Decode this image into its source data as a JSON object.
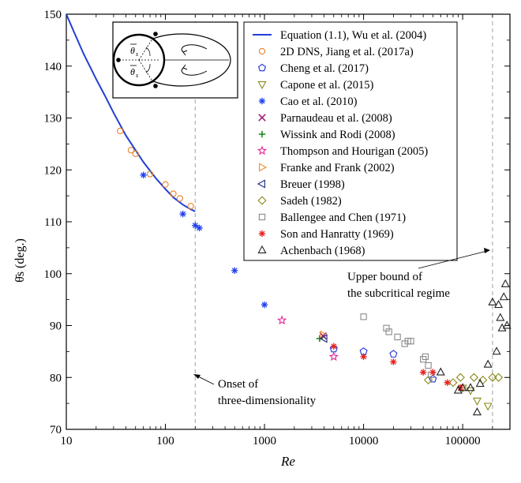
{
  "chart_data": {
    "type": "scatter",
    "title": "",
    "xlabel": "Re",
    "ylabel": "θ̄s (deg.)",
    "xscale": "log",
    "xlim": [
      10,
      300000
    ],
    "ylim": [
      70,
      150
    ],
    "xticks": [
      10,
      100,
      1000,
      10000,
      100000
    ],
    "xtick_labels": [
      "10",
      "100",
      "1000",
      "10000",
      "100000"
    ],
    "yticks": [
      70,
      80,
      90,
      100,
      110,
      120,
      130,
      140,
      150
    ],
    "ytick_labels": [
      "70",
      "80",
      "90",
      "100",
      "110",
      "120",
      "130",
      "140",
      "150"
    ],
    "reference_lines": [
      {
        "x": 200,
        "style": "dashed",
        "annotation": {
          "line1": "Onset of",
          "line2": "three-dimensionality"
        }
      },
      {
        "x": 200000,
        "style": "dashed",
        "annotation": {
          "line1": "Upper bound of",
          "line2": "the subcritical regime"
        }
      }
    ],
    "legend_position": "top-right",
    "inset": "separation angle schematic",
    "series": [
      {
        "name": "Equation (1.1), Wu et al. (2004)",
        "marker": "line",
        "color": "#1f3fd6",
        "x": [
          10,
          12,
          15,
          20,
          25,
          30,
          40,
          50,
          60,
          80,
          100,
          120,
          150,
          180,
          200
        ],
        "y": [
          150,
          146.5,
          142.3,
          137.5,
          134.0,
          131.0,
          126.6,
          123.8,
          121.5,
          118.4,
          116.3,
          114.7,
          113.3,
          112.4,
          112.0
        ]
      },
      {
        "name": "2D DNS, Jiang et al. (2017a)",
        "marker": "circle",
        "color": "#e8822a",
        "x": [
          35,
          45,
          50,
          70,
          100,
          120,
          140,
          180
        ],
        "y": [
          127.5,
          123.8,
          123.1,
          119.2,
          117.2,
          115.4,
          114.5,
          113.0
        ]
      },
      {
        "name": "Cheng et al. (2017)",
        "marker": "pentagon",
        "color": "#1f2fd8",
        "x": [
          5000,
          10000,
          20000,
          50000
        ],
        "y": [
          85.5,
          85.0,
          84.5,
          79.7
        ]
      },
      {
        "name": "Capone et al. (2015)",
        "marker": "triangle-down",
        "color": "#8b8a1a",
        "x": [
          100000,
          120000,
          140000,
          180000
        ],
        "y": [
          78,
          77.5,
          75.5,
          74.5
        ]
      },
      {
        "name": "Cao et al. (2010)",
        "marker": "asterisk",
        "color": "#1f3ff0",
        "x": [
          60,
          150,
          200,
          220,
          500,
          1000
        ],
        "y": [
          119,
          111.5,
          109.3,
          108.8,
          100.6,
          94.0
        ]
      },
      {
        "name": "Parnaudeau et al. (2008)",
        "marker": "x",
        "color": "#a0207a",
        "x": [
          3900
        ],
        "y": [
          88
        ]
      },
      {
        "name": "Wissink and Rodi (2008)",
        "marker": "plus",
        "color": "#1e8a1e",
        "x": [
          3600
        ],
        "y": [
          87.5
        ]
      },
      {
        "name": "Thompson and Hourigan (2005)",
        "marker": "star",
        "color": "#e8259a",
        "x": [
          1500,
          5000
        ],
        "y": [
          91,
          84
        ]
      },
      {
        "name": "Franke and Frank (2002)",
        "marker": "triangle-right",
        "color": "#f08a2a",
        "x": [
          3900
        ],
        "y": [
          88.2
        ]
      },
      {
        "name": "Breuer (1998)",
        "marker": "triangle-left",
        "color": "#1a2a80",
        "x": [
          4000
        ],
        "y": [
          87.5
        ]
      },
      {
        "name": "Sadeh (1982)",
        "marker": "diamond",
        "color": "#8b8a1a",
        "x": [
          45000,
          80000,
          95000,
          130000,
          160000,
          200000,
          230000
        ],
        "y": [
          79.5,
          79.0,
          80.0,
          80.0,
          79.5,
          80.0,
          80.0
        ]
      },
      {
        "name": "Ballengee and Chen (1971)",
        "marker": "square",
        "color": "#8a8a8a",
        "x": [
          10000,
          17000,
          18000,
          22000,
          26000,
          28000,
          30000,
          40000,
          42000,
          45000,
          48000
        ],
        "y": [
          91.7,
          89.5,
          88.8,
          87.8,
          86.5,
          87.0,
          87.0,
          83.5,
          84.0,
          82.3,
          80.5
        ]
      },
      {
        "name": "Son and Hanratty (1969)",
        "marker": "asterisk",
        "color": "#e8201e",
        "x": [
          5000,
          10000,
          20000,
          40000,
          50000,
          70000,
          95000
        ],
        "y": [
          86,
          84,
          83,
          81,
          81,
          79,
          78
        ]
      },
      {
        "name": "Achenbach (1968)",
        "marker": "triangle-up",
        "color": "#222222",
        "x": [
          60000,
          90000,
          100000,
          120000,
          140000,
          150000,
          180000,
          200000,
          220000,
          230000,
          240000,
          250000,
          260000,
          270000,
          280000
        ],
        "y": [
          81.0,
          77.5,
          78.0,
          78.0,
          73.3,
          78.8,
          82.5,
          94.5,
          85.0,
          94.0,
          91.5,
          89.5,
          95.5,
          98.0,
          90.0
        ]
      }
    ]
  }
}
